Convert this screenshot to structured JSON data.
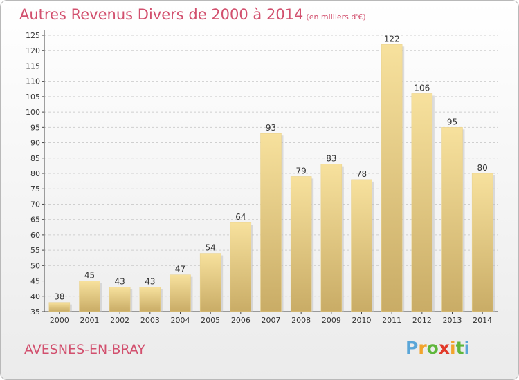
{
  "title": "Autres Revenus Divers de 2000 à 2014",
  "title_unit": "(en milliers d'€)",
  "place": "AVESNES-EN-BRAY",
  "logo": {
    "letters": [
      "P",
      "r",
      "o",
      "x",
      "i",
      "t",
      "i"
    ],
    "colors": [
      "#5aa6d8",
      "#f2a42c",
      "#5fb63b",
      "#e23a2a",
      "#f2a42c",
      "#5fb63b",
      "#5aa6d8"
    ]
  },
  "colors": {
    "title": "#d2506e",
    "bar_top": "#f7e19d",
    "bar_bottom": "#c9ac66",
    "grid": "#cfcfcf"
  },
  "chart_data": {
    "type": "bar",
    "title": "Autres Revenus Divers de 2000 à 2014",
    "subtitle": "(en milliers d'€)",
    "categories": [
      "2000",
      "2001",
      "2002",
      "2003",
      "2004",
      "2005",
      "2006",
      "2007",
      "2008",
      "2009",
      "2010",
      "2011",
      "2012",
      "2013",
      "2014"
    ],
    "values": [
      38,
      45,
      43,
      43,
      47,
      54,
      64,
      93,
      79,
      83,
      78,
      122,
      106,
      95,
      80
    ],
    "ylim": [
      35,
      125
    ],
    "yticks": [
      35,
      40,
      45,
      50,
      55,
      60,
      65,
      70,
      75,
      80,
      85,
      90,
      95,
      100,
      105,
      110,
      115,
      120,
      125
    ],
    "grid": true,
    "xlabel": "",
    "ylabel": ""
  }
}
